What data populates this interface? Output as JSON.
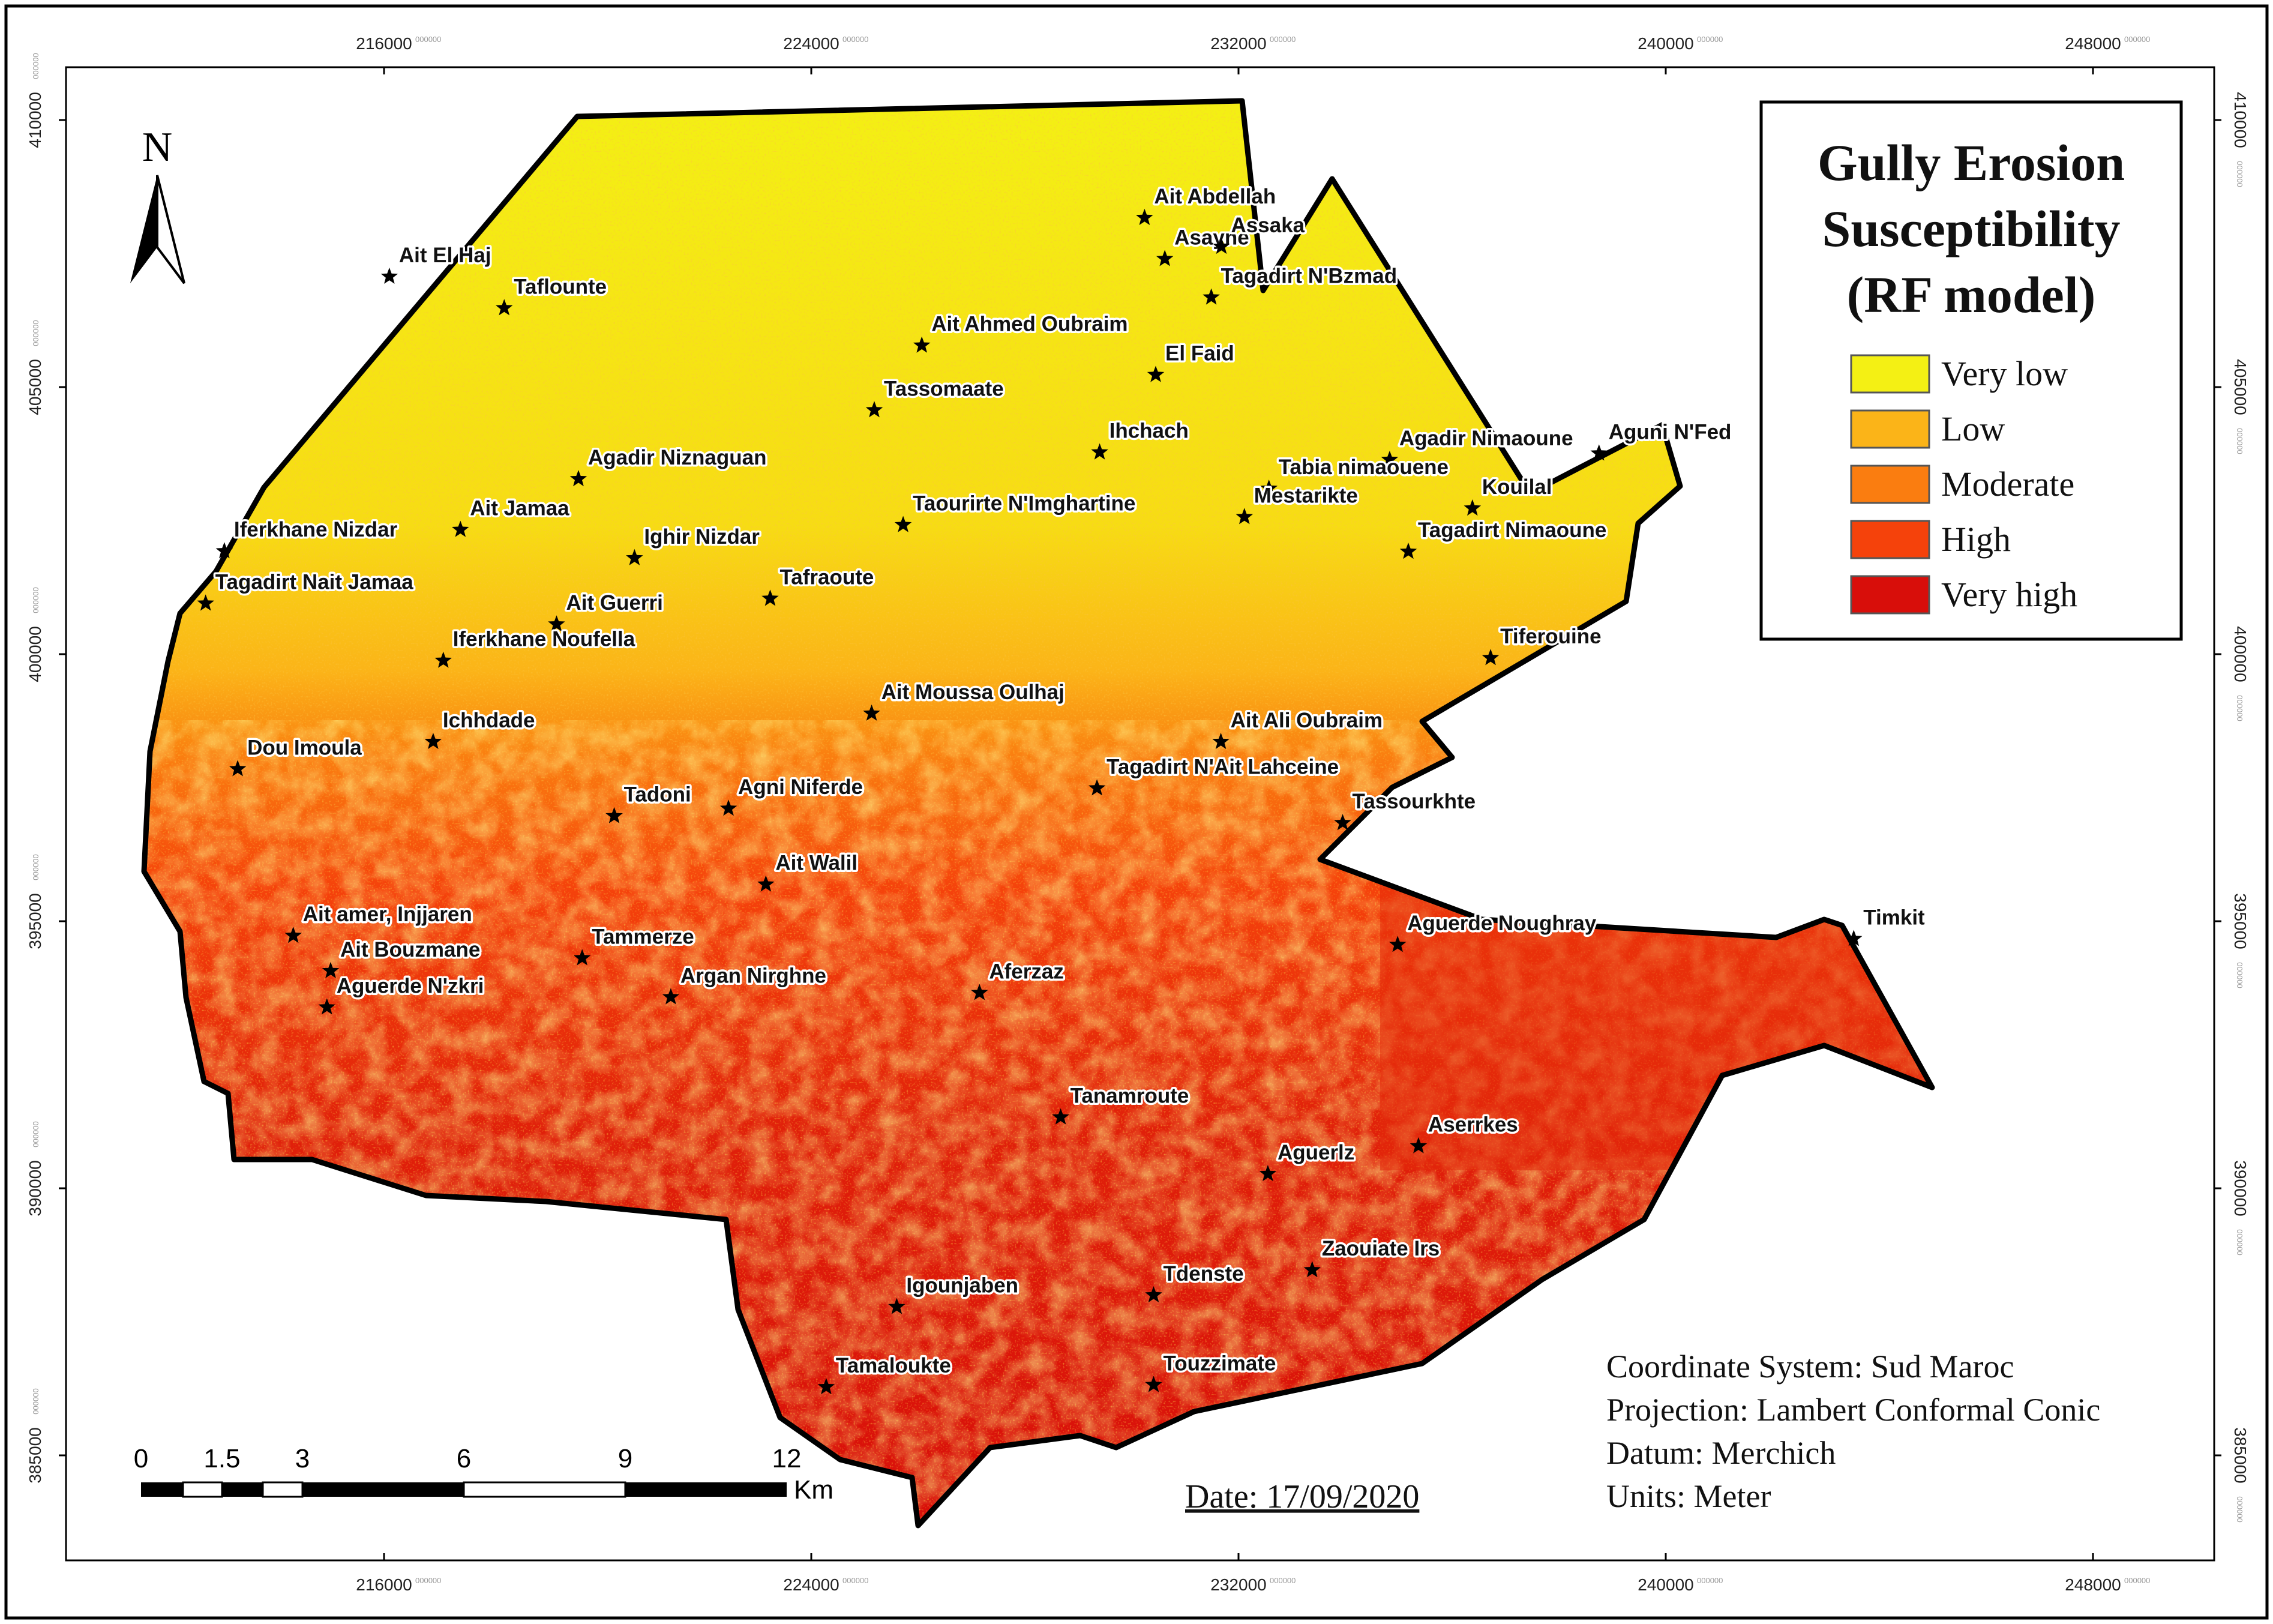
{
  "map": {
    "title_lines": [
      "Gully Erosion",
      "Susceptibility",
      "(RF model)"
    ],
    "legend": [
      {
        "label": "Very low",
        "color": "#f4f014"
      },
      {
        "label": "Low",
        "color": "#fbb418"
      },
      {
        "label": "Moderate",
        "color": "#fa7d10"
      },
      {
        "label": "High",
        "color": "#f5420b"
      },
      {
        "label": "Very high",
        "color": "#d80e0a"
      }
    ],
    "north_label": "N",
    "x_ticks": [
      "216000",
      "224000",
      "232000",
      "240000",
      "248000"
    ],
    "y_ticks": [
      "410000",
      "405000",
      "400000",
      "395000",
      "390000",
      "385000"
    ],
    "tick_suffix": "000000",
    "scale_bar": {
      "labels": [
        "0",
        "1.5",
        "3",
        "6",
        "9",
        "12"
      ],
      "unit": "Km"
    },
    "date": "Date: 17/09/2020",
    "info": [
      "Coordinate System: Sud Maroc",
      "Projection: Lambert Conformal Conic",
      "Datum: Merchich",
      "Units: Meter"
    ],
    "villages": [
      {
        "name": "Ait Abdellah",
        "x": 230240,
        "y": 408170
      },
      {
        "name": "Asayne",
        "x": 230620,
        "y": 407400
      },
      {
        "name": "Assaka",
        "x": 231680,
        "y": 407630
      },
      {
        "name": "Tagadirt N'Bzmad",
        "x": 231490,
        "y": 406680
      },
      {
        "name": "Ait El Haj",
        "x": 216100,
        "y": 407070
      },
      {
        "name": "Taflounte",
        "x": 218250,
        "y": 406480
      },
      {
        "name": "Ait Ahmed Oubraim",
        "x": 226070,
        "y": 405780
      },
      {
        "name": "El Faid",
        "x": 230450,
        "y": 405230
      },
      {
        "name": "Tassomaate",
        "x": 225180,
        "y": 404570
      },
      {
        "name": "Ihchach",
        "x": 229400,
        "y": 403780
      },
      {
        "name": "Agadir Nimaoune",
        "x": 234830,
        "y": 403640
      },
      {
        "name": "Aguni N'Fed",
        "x": 238750,
        "y": 403760
      },
      {
        "name": "Agadir Niznaguan",
        "x": 219640,
        "y": 403280
      },
      {
        "name": "Tabia nimaouene",
        "x": 232570,
        "y": 403100
      },
      {
        "name": "Kouilal",
        "x": 236380,
        "y": 402730
      },
      {
        "name": "Mestarikte",
        "x": 232110,
        "y": 402570
      },
      {
        "name": "Taourirte N'Imghartine",
        "x": 225720,
        "y": 402420
      },
      {
        "name": "Tagadirt Nimaoune",
        "x": 235180,
        "y": 401920
      },
      {
        "name": "Ait Jamaa",
        "x": 217430,
        "y": 402330
      },
      {
        "name": "Iferkhane Nizdar",
        "x": 213010,
        "y": 401930
      },
      {
        "name": "Ighir Nizdar",
        "x": 220690,
        "y": 401800
      },
      {
        "name": "Tafraoute",
        "x": 223230,
        "y": 401040
      },
      {
        "name": "Tagadirt Nait Jamaa",
        "x": 212660,
        "y": 400950
      },
      {
        "name": "Ait Guerri",
        "x": 219230,
        "y": 400560
      },
      {
        "name": "Iferkhane Noufella",
        "x": 217110,
        "y": 399880
      },
      {
        "name": "Tiferouine",
        "x": 236720,
        "y": 399930
      },
      {
        "name": "Ait Moussa Oulhaj",
        "x": 225130,
        "y": 398890
      },
      {
        "name": "Ichhdade",
        "x": 216920,
        "y": 398360
      },
      {
        "name": "Ait Ali Oubraim",
        "x": 231670,
        "y": 398360
      },
      {
        "name": "Dou Imoula",
        "x": 213260,
        "y": 397850
      },
      {
        "name": "Tagadirt N'Ait Lahceine",
        "x": 229350,
        "y": 397490
      },
      {
        "name": "Agni Niferde",
        "x": 222450,
        "y": 397110
      },
      {
        "name": "Tadoni",
        "x": 220310,
        "y": 396970
      },
      {
        "name": "Tassourkhte",
        "x": 233950,
        "y": 396840
      },
      {
        "name": "Ait Walil",
        "x": 223150,
        "y": 395690
      },
      {
        "name": "Timkit",
        "x": 243520,
        "y": 394670
      },
      {
        "name": "Aguerde Noughray",
        "x": 234980,
        "y": 394560
      },
      {
        "name": "Ait amer, Injjaren",
        "x": 214300,
        "y": 394730
      },
      {
        "name": "Ait Bouzmane",
        "x": 215000,
        "y": 394070
      },
      {
        "name": "Tammerze",
        "x": 219710,
        "y": 394310
      },
      {
        "name": "Aferzaz",
        "x": 227150,
        "y": 393660
      },
      {
        "name": "Aguerde N'zkri",
        "x": 214930,
        "y": 393390
      },
      {
        "name": "Argan Nirghne",
        "x": 221370,
        "y": 393580
      },
      {
        "name": "Tanamroute",
        "x": 228670,
        "y": 391330
      },
      {
        "name": "Aserrkes",
        "x": 235370,
        "y": 390790
      },
      {
        "name": "Aguerlz",
        "x": 232550,
        "y": 390270
      },
      {
        "name": "Zaouiate Irs",
        "x": 233380,
        "y": 388470
      },
      {
        "name": "Tdenste",
        "x": 230410,
        "y": 388000
      },
      {
        "name": "Igounjaben",
        "x": 225600,
        "y": 387780
      },
      {
        "name": "Touzzimate",
        "x": 230410,
        "y": 386320
      },
      {
        "name": "Tamaloukte",
        "x": 224280,
        "y": 386280
      }
    ]
  }
}
